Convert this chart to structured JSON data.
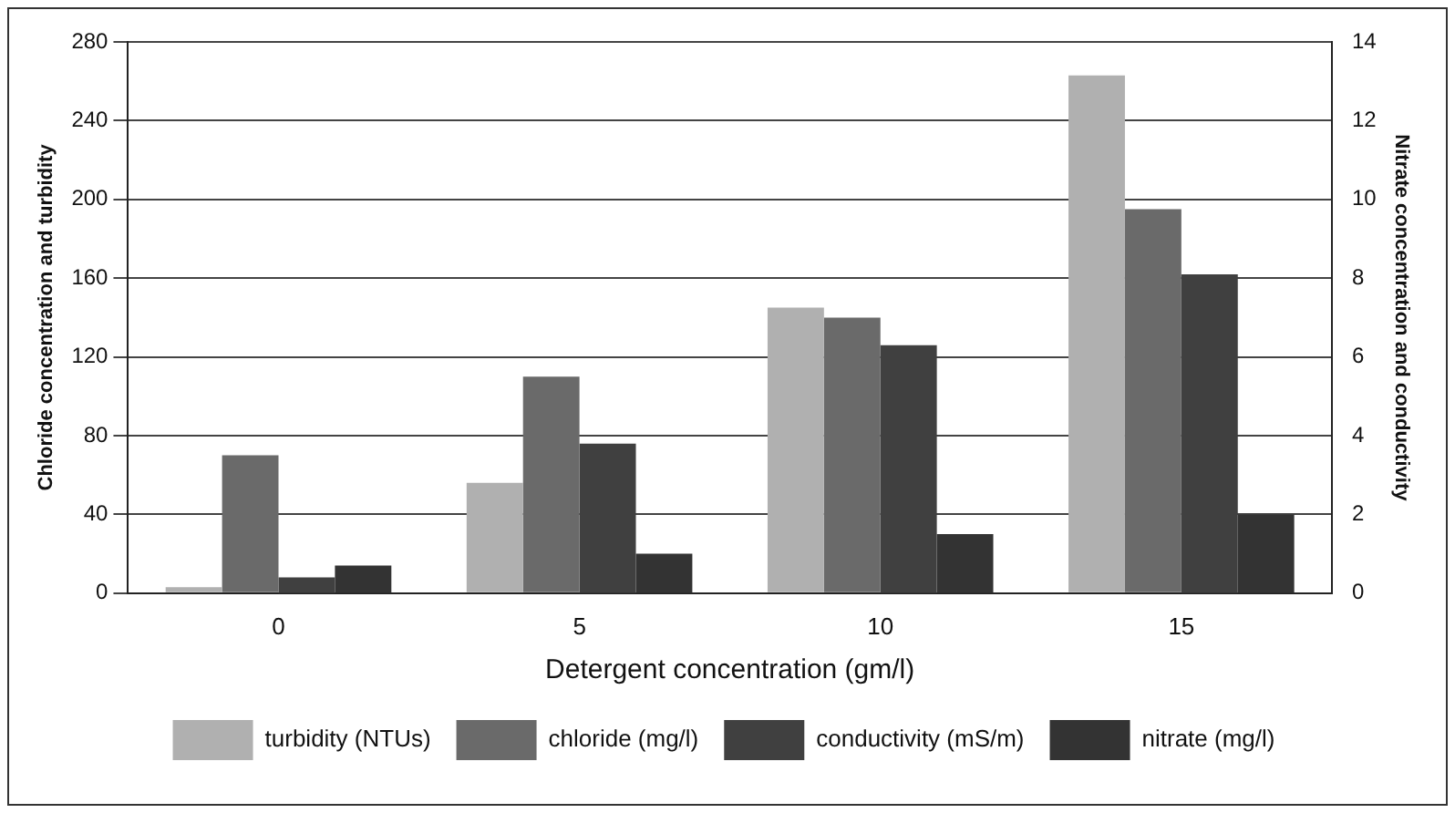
{
  "chart_data": {
    "type": "bar",
    "xlabel": "Detergent concentration (gm/l)",
    "ylabel": "Chloride concentration and turbidity",
    "y2label": "Nitrate concentration and conductivity",
    "categories": [
      "0",
      "5",
      "10",
      "15"
    ],
    "series": [
      {
        "name": "turbidity (NTUs)",
        "color": "#b0b0b0",
        "values": [
          3,
          56,
          145,
          263
        ]
      },
      {
        "name": "chloride (mg/l)",
        "color": "#6a6a6a",
        "values": [
          70,
          110,
          140,
          195
        ]
      },
      {
        "name": "conductivity (mS/m)",
        "color": "#404040",
        "axis": "y2",
        "values": [
          0.4,
          3.8,
          6.3,
          8.1
        ]
      },
      {
        "name": "nitrate (mg/l)",
        "color": "#333333",
        "axis": "y2",
        "values": [
          0.7,
          1.0,
          1.5,
          2.0
        ]
      }
    ],
    "ylim": [
      0,
      280
    ],
    "yticks": [
      0,
      40,
      80,
      120,
      160,
      200,
      240,
      280
    ],
    "y2lim": [
      0,
      14
    ],
    "y2ticks": [
      0,
      2,
      4,
      6,
      8,
      10,
      12,
      14
    ],
    "grid": "y",
    "legend": "bottom"
  }
}
